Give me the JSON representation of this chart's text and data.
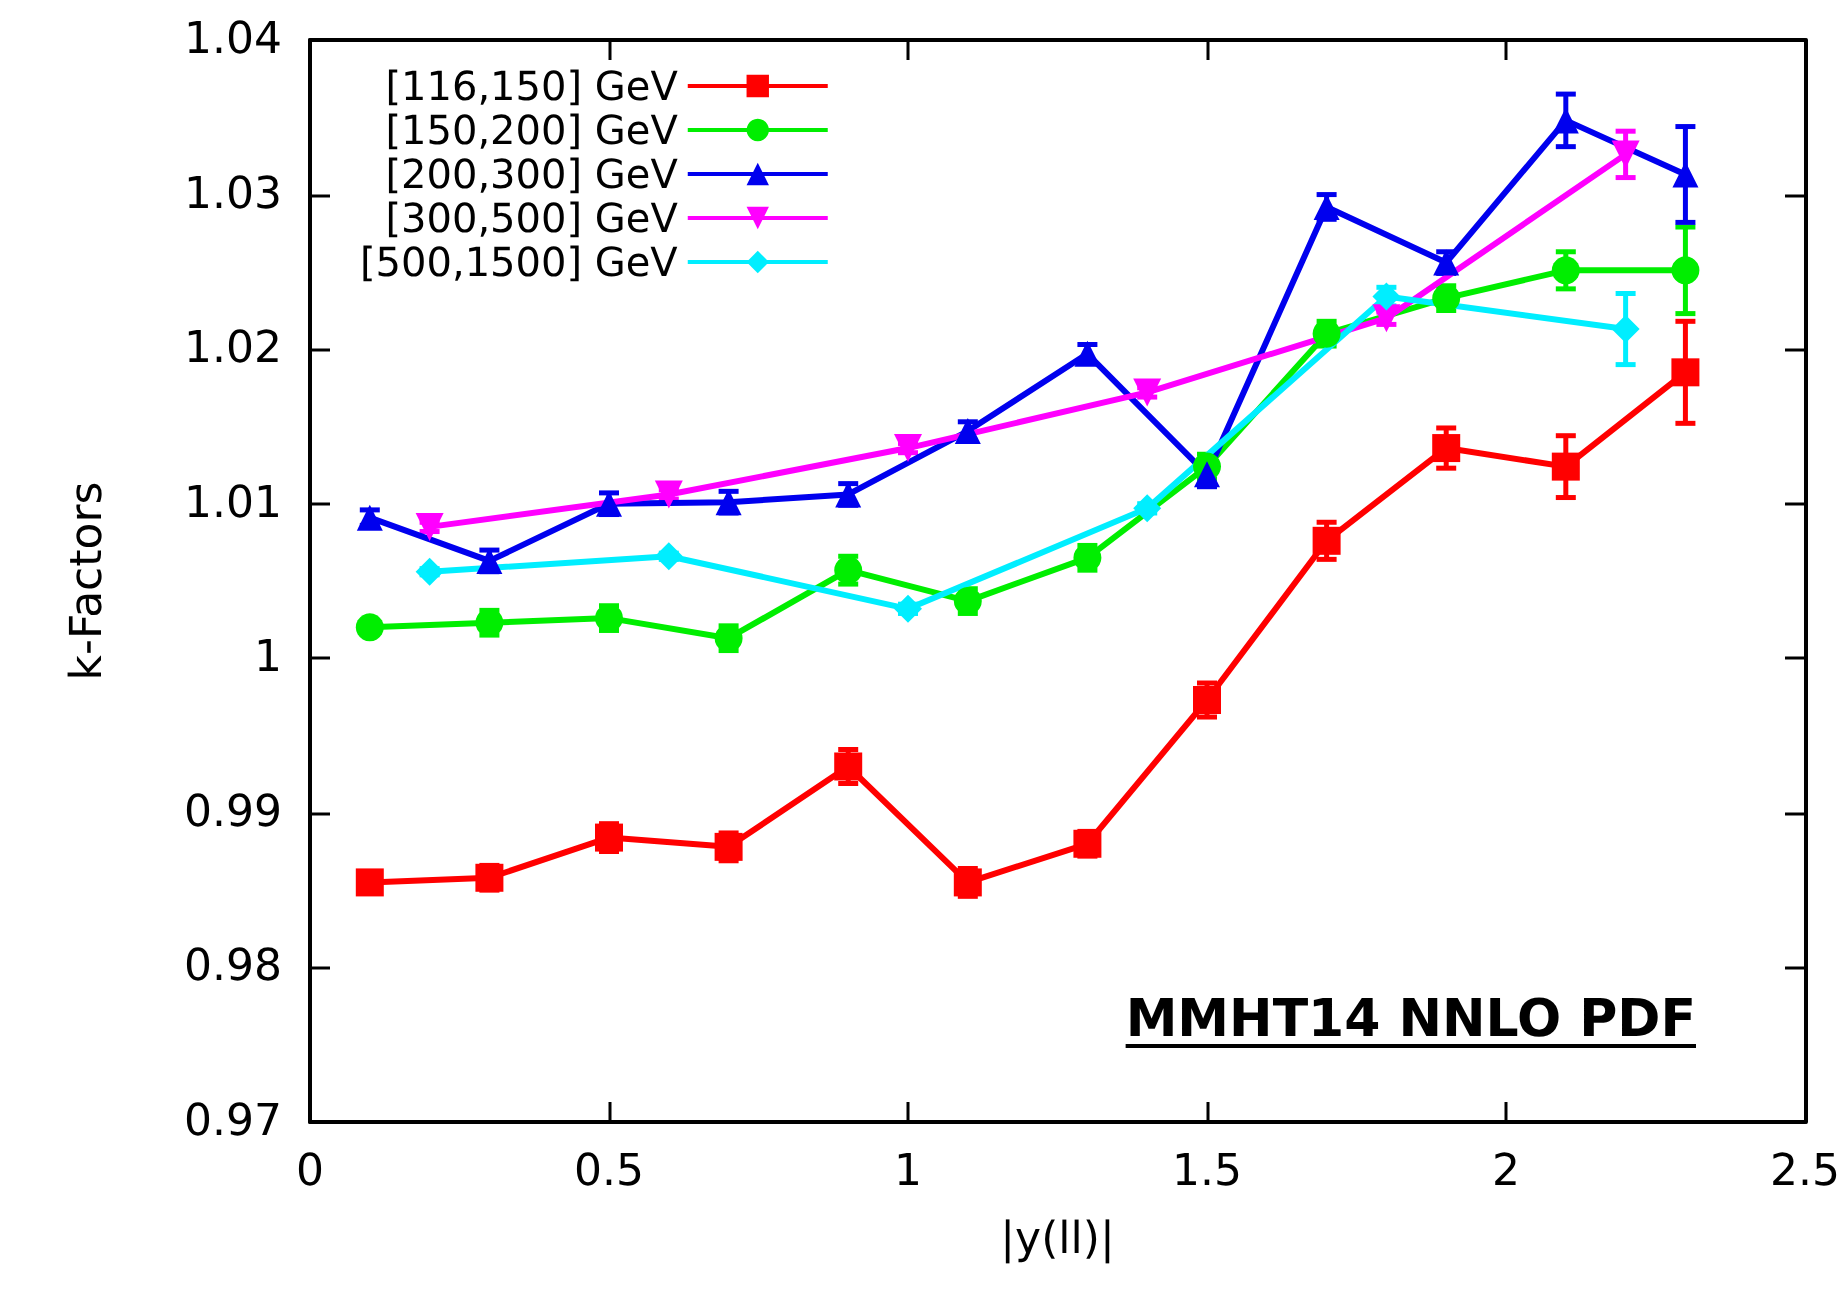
{
  "chart_data": {
    "type": "line",
    "xlabel": "|y(ll)|",
    "ylabel": "k-Factors",
    "xlim": [
      0,
      2.5
    ],
    "xticks": [
      0,
      0.5,
      1,
      1.5,
      2,
      2.5
    ],
    "ylim": [
      0.97,
      1.04
    ],
    "yticks": [
      0.97,
      0.98,
      0.99,
      1,
      1.01,
      1.02,
      1.03,
      1.04
    ],
    "grid": false,
    "legend": "top left",
    "line_style": "solid",
    "annotations": [
      "MMHT14 NNLO PDF"
    ],
    "series": [
      {
        "name": "[116,150] GeV",
        "color": "#ff0000",
        "marker": "square",
        "x": [
          0.1,
          0.3,
          0.5,
          0.7,
          0.9,
          1.1,
          1.3,
          1.5,
          1.7,
          1.9,
          2.1,
          2.3
        ],
        "values": [
          0.9855,
          0.9858,
          0.9884,
          0.9878,
          0.993,
          0.9855,
          0.988,
          0.9973,
          1.0076,
          1.0136,
          1.0124,
          1.0185
        ],
        "errors": [
          0.0004,
          0.0008,
          0.0009,
          0.0009,
          0.0011,
          0.0009,
          0.0008,
          0.0011,
          0.0012,
          0.0013,
          0.002,
          0.0033
        ]
      },
      {
        "name": "[150,200] GeV",
        "color": "#00ee00",
        "marker": "circle",
        "x": [
          0.1,
          0.3,
          0.5,
          0.7,
          0.9,
          1.1,
          1.3,
          1.5,
          1.7,
          1.9,
          2.1,
          2.3
        ],
        "values": [
          1.002,
          1.0023,
          1.0026,
          1.0013,
          1.0057,
          1.0037,
          1.0065,
          1.0124,
          1.021,
          1.0233,
          1.0251,
          1.0251
        ],
        "errors": [
          0.0003,
          0.0008,
          0.0008,
          0.0008,
          0.0009,
          0.0008,
          0.0008,
          0.0008,
          0.0008,
          0.0008,
          0.0012,
          0.0028
        ]
      },
      {
        "name": "[200,300] GeV",
        "color": "#0000ee",
        "marker": "triangle",
        "x": [
          0.1,
          0.3,
          0.5,
          0.7,
          0.9,
          1.1,
          1.3,
          1.5,
          1.7,
          1.9,
          2.1,
          2.3
        ],
        "values": [
          1.0091,
          1.0063,
          1.01,
          1.0101,
          1.0106,
          1.0147,
          1.0197,
          1.0119,
          1.0292,
          1.0256,
          1.0348,
          1.0313
        ],
        "errors": [
          0.0005,
          0.0007,
          0.0007,
          0.0007,
          0.0007,
          0.0006,
          0.0006,
          0.0008,
          0.0008,
          0.0007,
          0.0017,
          0.0031
        ]
      },
      {
        "name": "[300,500] GeV",
        "color": "#ff00ff",
        "marker": "triangle-down",
        "x": [
          0.2,
          0.6,
          1.0,
          1.4,
          1.8,
          2.2
        ],
        "values": [
          1.0085,
          1.0106,
          1.0136,
          1.0172,
          1.022,
          1.0326
        ],
        "errors": [
          0.0003,
          0.0003,
          0.0003,
          0.0003,
          0.0004,
          0.0015
        ]
      },
      {
        "name": "[500,1500] GeV",
        "color": "#00eeff",
        "marker": "diamond",
        "x": [
          0.2,
          0.6,
          1.0,
          1.4,
          1.8,
          2.2
        ],
        "values": [
          1.0056,
          1.0066,
          1.0032,
          1.0097,
          1.0234,
          1.0213
        ],
        "errors": [
          0.0002,
          0.0002,
          0.0003,
          0.0003,
          0.0006,
          0.0023
        ]
      }
    ]
  }
}
